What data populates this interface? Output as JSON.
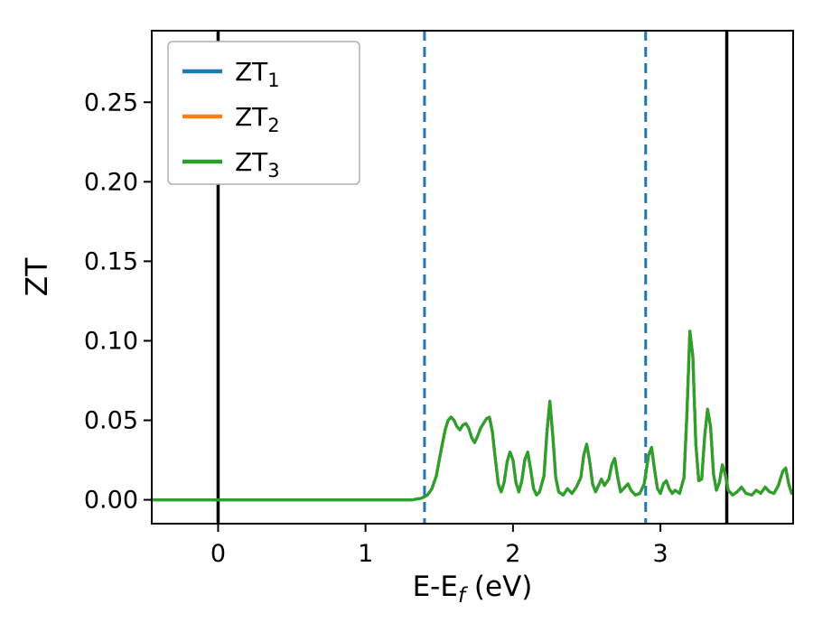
{
  "chart_data": {
    "type": "line",
    "title": "",
    "xlabel_main": "E-E",
    "xlabel_sub": "f",
    "xlabel_suffix": " (eV)",
    "ylabel": "ZT",
    "xlim": [
      -0.45,
      3.9
    ],
    "ylim": [
      -0.015,
      0.295
    ],
    "x_ticks": [
      0,
      1,
      2,
      3
    ],
    "x_tick_labels": [
      "0",
      "1",
      "2",
      "3"
    ],
    "y_ticks": [
      0,
      0.05,
      0.1,
      0.15,
      0.2,
      0.25
    ],
    "y_tick_labels": [
      "0.00",
      "0.05",
      "0.10",
      "0.15",
      "0.20",
      "0.25"
    ],
    "grid": false,
    "legend_position": "upper-left",
    "background": "#ffffff",
    "axis_color": "#000000",
    "series": [
      {
        "label_main": "ZT",
        "label_sub": "1",
        "color": "#1f77b4"
      },
      {
        "label_main": "ZT",
        "label_sub": "2",
        "color": "#ff7f0e"
      },
      {
        "label_main": "ZT",
        "label_sub": "3",
        "color": "#2ca02c"
      }
    ],
    "series_overlap_note": "All three curves coincide; only the green ZT3 curve (drawn last) is visible.",
    "points_shared_by_all_series": [
      [
        -0.45,
        0
      ],
      [
        -0.3,
        0
      ],
      [
        -0.15,
        0
      ],
      [
        0,
        0
      ],
      [
        0.2,
        0
      ],
      [
        0.4,
        0
      ],
      [
        0.6,
        0
      ],
      [
        0.8,
        0
      ],
      [
        1.0,
        0
      ],
      [
        1.15,
        0
      ],
      [
        1.25,
        0
      ],
      [
        1.32,
        0
      ],
      [
        1.38,
        0.001
      ],
      [
        1.42,
        0.003
      ],
      [
        1.45,
        0.007
      ],
      [
        1.48,
        0.015
      ],
      [
        1.51,
        0.03
      ],
      [
        1.54,
        0.044
      ],
      [
        1.56,
        0.05
      ],
      [
        1.58,
        0.052
      ],
      [
        1.6,
        0.05
      ],
      [
        1.62,
        0.046
      ],
      [
        1.64,
        0.044
      ],
      [
        1.66,
        0.047
      ],
      [
        1.68,
        0.048
      ],
      [
        1.7,
        0.045
      ],
      [
        1.72,
        0.039
      ],
      [
        1.74,
        0.036
      ],
      [
        1.76,
        0.04
      ],
      [
        1.78,
        0.045
      ],
      [
        1.8,
        0.048
      ],
      [
        1.82,
        0.051
      ],
      [
        1.84,
        0.052
      ],
      [
        1.86,
        0.043
      ],
      [
        1.88,
        0.026
      ],
      [
        1.9,
        0.01
      ],
      [
        1.92,
        0.005
      ],
      [
        1.94,
        0.011
      ],
      [
        1.96,
        0.024
      ],
      [
        1.98,
        0.03
      ],
      [
        2.0,
        0.025
      ],
      [
        2.02,
        0.011
      ],
      [
        2.04,
        0.005
      ],
      [
        2.06,
        0.012
      ],
      [
        2.08,
        0.025
      ],
      [
        2.1,
        0.03
      ],
      [
        2.12,
        0.019
      ],
      [
        2.14,
        0.007
      ],
      [
        2.16,
        0.003
      ],
      [
        2.18,
        0.005
      ],
      [
        2.21,
        0.015
      ],
      [
        2.23,
        0.042
      ],
      [
        2.25,
        0.062
      ],
      [
        2.27,
        0.04
      ],
      [
        2.29,
        0.014
      ],
      [
        2.31,
        0.005
      ],
      [
        2.34,
        0.003
      ],
      [
        2.37,
        0.007
      ],
      [
        2.4,
        0.004
      ],
      [
        2.43,
        0.008
      ],
      [
        2.46,
        0.014
      ],
      [
        2.48,
        0.028
      ],
      [
        2.5,
        0.035
      ],
      [
        2.52,
        0.024
      ],
      [
        2.54,
        0.01
      ],
      [
        2.56,
        0.005
      ],
      [
        2.58,
        0.009
      ],
      [
        2.6,
        0.013
      ],
      [
        2.62,
        0.009
      ],
      [
        2.65,
        0.013
      ],
      [
        2.67,
        0.022
      ],
      [
        2.69,
        0.026
      ],
      [
        2.71,
        0.014
      ],
      [
        2.73,
        0.005
      ],
      [
        2.76,
        0.008
      ],
      [
        2.78,
        0.01
      ],
      [
        2.8,
        0.006
      ],
      [
        2.83,
        0.003
      ],
      [
        2.86,
        0.004
      ],
      [
        2.89,
        0.01
      ],
      [
        2.92,
        0.028
      ],
      [
        2.94,
        0.033
      ],
      [
        2.96,
        0.019
      ],
      [
        2.98,
        0.007
      ],
      [
        3.0,
        0.004
      ],
      [
        3.02,
        0.01
      ],
      [
        3.04,
        0.012
      ],
      [
        3.06,
        0.007
      ],
      [
        3.08,
        0.004
      ],
      [
        3.1,
        0.006
      ],
      [
        3.13,
        0.004
      ],
      [
        3.16,
        0.014
      ],
      [
        3.18,
        0.055
      ],
      [
        3.2,
        0.106
      ],
      [
        3.22,
        0.09
      ],
      [
        3.24,
        0.035
      ],
      [
        3.26,
        0.012
      ],
      [
        3.28,
        0.013
      ],
      [
        3.3,
        0.04
      ],
      [
        3.32,
        0.057
      ],
      [
        3.34,
        0.046
      ],
      [
        3.36,
        0.016
      ],
      [
        3.38,
        0.006
      ],
      [
        3.4,
        0.011
      ],
      [
        3.42,
        0.022
      ],
      [
        3.44,
        0.016
      ],
      [
        3.46,
        0.006
      ],
      [
        3.49,
        0.003
      ],
      [
        3.52,
        0.005
      ],
      [
        3.55,
        0.008
      ],
      [
        3.58,
        0.004
      ],
      [
        3.62,
        0.003
      ],
      [
        3.65,
        0.006
      ],
      [
        3.68,
        0.004
      ],
      [
        3.71,
        0.008
      ],
      [
        3.74,
        0.005
      ],
      [
        3.77,
        0.004
      ],
      [
        3.8,
        0.009
      ],
      [
        3.83,
        0.018
      ],
      [
        3.85,
        0.02
      ],
      [
        3.87,
        0.01
      ],
      [
        3.89,
        0.004
      ]
    ],
    "vlines_solid": {
      "color": "#000000",
      "x": [
        0.0,
        3.45
      ]
    },
    "vlines_dashed": {
      "color": "#1f77b4",
      "x": [
        1.4,
        2.9
      ]
    }
  }
}
